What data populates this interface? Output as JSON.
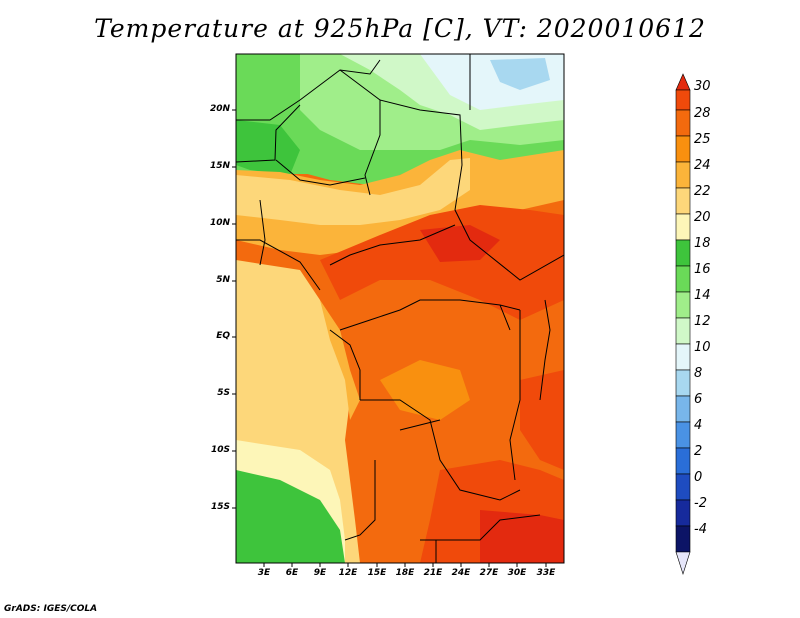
{
  "title": "Temperature at 925hPa [C], VT: 2020010612",
  "credit": "GrADS: IGES/COLA",
  "map": {
    "lat_labels": [
      "20N",
      "15N",
      "10N",
      "5N",
      "EQ",
      "5S",
      "10S",
      "15S"
    ],
    "lon_labels": [
      "3E",
      "6E",
      "9E",
      "12E",
      "15E",
      "18E",
      "21E",
      "24E",
      "27E",
      "30E",
      "33E"
    ]
  },
  "colorbar": {
    "labels": [
      "30",
      "28",
      "25",
      "24",
      "22",
      "20",
      "18",
      "16",
      "14",
      "12",
      "10",
      "8",
      "6",
      "4",
      "2",
      "0",
      "-2",
      "-4"
    ],
    "colors": [
      "#e32a0f",
      "#f04a0b",
      "#f36a0e",
      "#f9900f",
      "#fbb43a",
      "#fdd77a",
      "#fdf6b8",
      "#3ec43c",
      "#6ada58",
      "#a0ee8a",
      "#d0f8c8",
      "#e4f6fa",
      "#a8d8f0",
      "#78b6ea",
      "#4a92e4",
      "#2a6ed8",
      "#1e4cc0",
      "#162a9c",
      "#0c1466",
      "#e6e6fa"
    ]
  }
}
